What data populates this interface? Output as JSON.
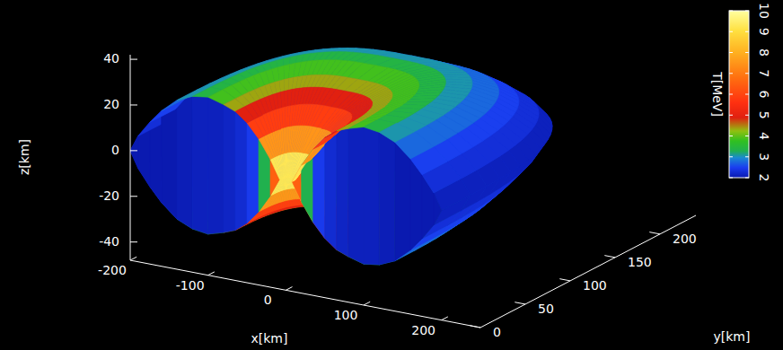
{
  "chart_data": {
    "type": "surface3d",
    "xlabel": "x[km]",
    "ylabel": "y[km]",
    "zlabel": "z[km]",
    "xlim": [
      -200,
      250
    ],
    "xticks": [
      -200,
      -100,
      0,
      100,
      200
    ],
    "ylim": [
      0,
      240
    ],
    "yticks": [
      0,
      50,
      100,
      150,
      200
    ],
    "zlim": [
      -48,
      42
    ],
    "zticks": [
      -40,
      -20,
      0,
      20,
      40
    ],
    "colorbar": {
      "label": "T[MeV]",
      "range": [
        2,
        10
      ],
      "ticks": [
        2,
        3,
        4,
        5,
        6,
        7,
        8,
        9,
        10
      ]
    },
    "surface": {
      "R": [
        8,
        20,
        35,
        50,
        65,
        80,
        100,
        120,
        140,
        160,
        175,
        190,
        200
      ],
      "z_top": [
        0,
        8,
        16,
        22,
        26,
        28,
        30,
        29,
        26,
        20,
        14,
        7,
        0
      ],
      "z_bottom": [
        0,
        -8,
        -16,
        -22,
        -26,
        -28,
        -30,
        -29,
        -26,
        -20,
        -14,
        -7,
        0
      ],
      "T_top": [
        10,
        8.5,
        6.5,
        5.2,
        4.6,
        4.1,
        3.6,
        3.2,
        2.9,
        2.6,
        2.4,
        2.2,
        2
      ],
      "T_bottom": [
        10,
        8.5,
        6.5,
        5.2,
        4.6,
        4.1,
        3.6,
        3.2,
        2.9,
        2.6,
        2.4,
        2.2,
        2
      ],
      "T_cut": [
        9,
        4,
        2.6,
        2.3,
        2.2,
        2.1,
        2.1,
        2.1,
        2,
        2,
        2,
        2,
        2
      ]
    }
  }
}
